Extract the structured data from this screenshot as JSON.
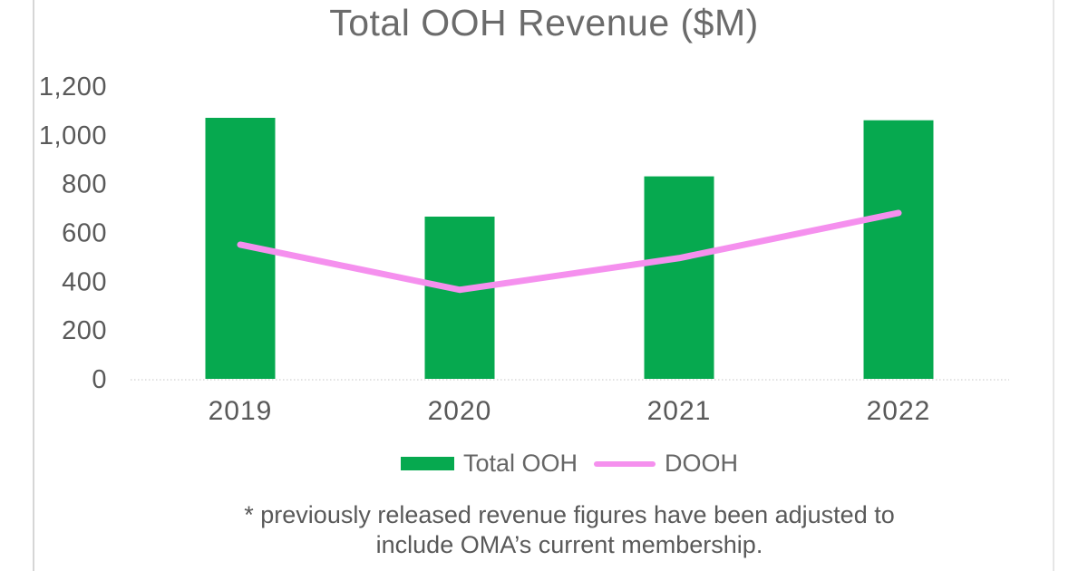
{
  "chart_data": {
    "type": "bar",
    "title": "Total OOH Revenue ($M)",
    "categories": [
      "2019",
      "2020",
      "2021",
      "2022"
    ],
    "series": [
      {
        "name": "Total OOH",
        "type": "bar",
        "color": "#06A94F",
        "values": [
          1070,
          665,
          830,
          1060
        ]
      },
      {
        "name": "DOOH",
        "type": "line",
        "color": "#F590EE",
        "values": [
          550,
          365,
          495,
          680
        ]
      }
    ],
    "xlabel": "",
    "ylabel": "",
    "ylim": [
      0,
      1200
    ],
    "ytick_step": 200,
    "yticks": [
      {
        "value": 1200,
        "label": "1,200"
      },
      {
        "value": 1000,
        "label": "1,000"
      },
      {
        "value": 800,
        "label": "800"
      },
      {
        "value": 600,
        "label": "600"
      },
      {
        "value": 400,
        "label": "400"
      },
      {
        "value": 200,
        "label": "200"
      },
      {
        "value": 0,
        "label": "0"
      }
    ],
    "grid": "baseline-only",
    "legend_position": "bottom"
  },
  "footnote": {
    "line1": "* previously released revenue figures have been adjusted to",
    "line2": "include OMA’s current membership."
  },
  "colors": {
    "title_text": "#6b6b6b",
    "axis_text": "#595959",
    "baseline": "#d9d9d9",
    "bar_green": "#06A94F",
    "line_pink": "#F590EE"
  }
}
